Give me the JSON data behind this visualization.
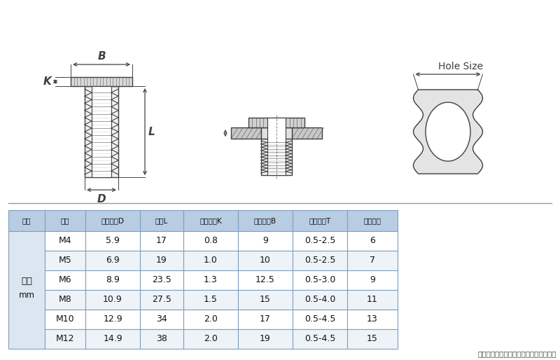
{
  "bg_color": "#ffffff",
  "table_header_bg": "#b8cce4",
  "table_left_bg": "#dce6f1",
  "table_row_bg_odd": "#ffffff",
  "table_row_bg_even": "#eef3f8",
  "table_border_color": "#7f9fbf",
  "col_headers": [
    "单位",
    "规格",
    "柱体外径D",
    "长度L",
    "头部厚度K",
    "头部外径B",
    "铆接厚度T",
    "开孔尺寸"
  ],
  "rows": [
    [
      "M4",
      "5.9",
      "17",
      "0.8",
      "9",
      "0.5-2.5",
      "6"
    ],
    [
      "M5",
      "6.9",
      "19",
      "1.0",
      "10",
      "0.5-2.5",
      "7"
    ],
    [
      "M6",
      "8.9",
      "23.5",
      "1.3",
      "12.5",
      "0.5-3.0",
      "9"
    ],
    [
      "M8",
      "10.9",
      "27.5",
      "1.5",
      "15",
      "0.5-4.0",
      "11"
    ],
    [
      "M10",
      "12.9",
      "34",
      "2.0",
      "17",
      "0.5-4.5",
      "13"
    ],
    [
      "M12",
      "14.9",
      "38",
      "2.0",
      "19",
      "0.5-4.5",
      "15"
    ]
  ],
  "left_label_main": "公制",
  "left_label_sub": "mm",
  "note": "注：产品存在正负公差，介意者请慎拍！",
  "diagram_line_color": "#404040",
  "hole_size_label": "Hole Size",
  "dim_labels": [
    "B",
    "K",
    "L",
    "D"
  ]
}
